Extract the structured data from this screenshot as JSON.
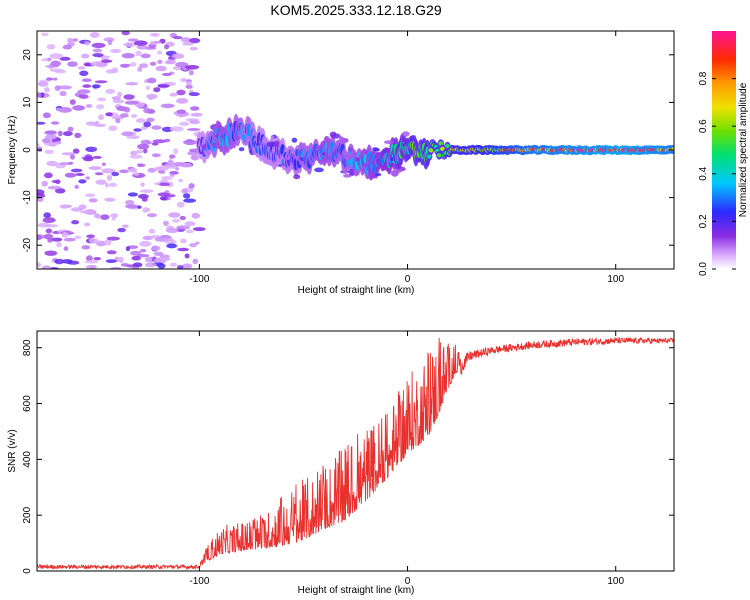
{
  "title": "KOM5.2025.333.12.18.G29",
  "colors": {
    "snr_line": "#e8302c",
    "spectrum_low": "#cc99ff",
    "spectrum_mid": "#7a1cff",
    "axis": "#000000"
  },
  "chart_data": [
    {
      "type": "heatmap",
      "title": "KOM5.2025.333.12.18.G29",
      "xlabel": "Height of straight line (km)",
      "ylabel": "Frequency (Hz)",
      "xlim": [
        -178,
        128
      ],
      "ylim": [
        -25,
        25
      ],
      "xticks": [
        -100,
        0,
        100
      ],
      "xtick_labels": [
        "-100",
        "0",
        "100"
      ],
      "yticks": [
        -20,
        -10,
        0,
        10,
        20
      ],
      "ytick_labels": [
        "-20",
        "-10",
        "0",
        "10",
        "20"
      ],
      "colorbar": {
        "label": "Normalized spectral amplitude",
        "range": [
          0,
          1
        ],
        "ticks": [
          0.0,
          0.2,
          0.4,
          0.6,
          0.8
        ],
        "tick_labels": [
          "0.0",
          "0.2",
          "0.4",
          "0.6",
          "0.8"
        ]
      },
      "ridge": {
        "description_points_x": [
          -100,
          -90,
          -80,
          -70,
          -60,
          -50,
          -40,
          -30,
          -20,
          -10,
          0,
          10,
          20,
          40,
          60,
          80,
          100,
          120,
          128
        ],
        "frequency_hz": [
          0,
          3,
          4,
          1,
          -1,
          -2,
          0,
          -1,
          -3,
          -2,
          0,
          0,
          0,
          0,
          0,
          0,
          0,
          0,
          0
        ],
        "amplitude": [
          0.2,
          0.35,
          0.3,
          0.25,
          0.25,
          0.3,
          0.35,
          0.3,
          0.35,
          0.4,
          0.5,
          0.55,
          0.6,
          0.7,
          0.85,
          0.9,
          0.95,
          0.9,
          0.85
        ]
      },
      "noise_region_x": [
        -178,
        -100
      ]
    },
    {
      "type": "line",
      "xlabel": "Height of straight line (km)",
      "ylabel": "SNR (v/v)",
      "xlim": [
        -178,
        128
      ],
      "ylim": [
        0,
        860
      ],
      "xticks": [
        -100,
        0,
        100
      ],
      "xtick_labels": [
        "-100",
        "0",
        "100"
      ],
      "yticks": [
        0,
        200,
        400,
        600,
        800
      ],
      "ytick_labels": [
        "0",
        "200",
        "400",
        "600",
        "800"
      ],
      "series": [
        {
          "name": "SNR",
          "envelope_x": [
            -178,
            -100,
            -95,
            -90,
            -80,
            -70,
            -60,
            -50,
            -40,
            -30,
            -20,
            -10,
            0,
            10,
            15,
            20,
            25,
            30,
            40,
            60,
            80,
            100,
            128
          ],
          "baseline_y": [
            15,
            15,
            40,
            60,
            70,
            80,
            90,
            110,
            150,
            180,
            250,
            330,
            420,
            480,
            560,
            660,
            730,
            770,
            790,
            810,
            820,
            825,
            825
          ],
          "peak_y": [
            30,
            30,
            110,
            160,
            180,
            200,
            280,
            330,
            380,
            450,
            520,
            570,
            700,
            800,
            840,
            820,
            810,
            810,
            820,
            840,
            850,
            850,
            845
          ]
        }
      ]
    }
  ]
}
